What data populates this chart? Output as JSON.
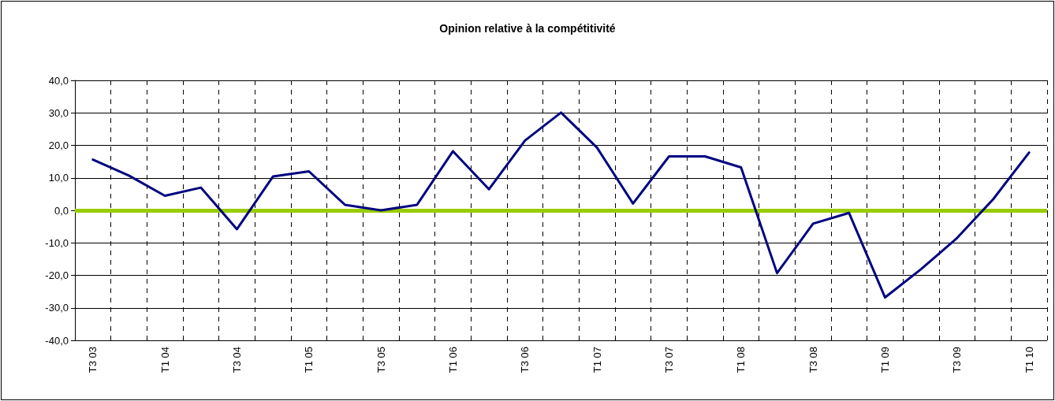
{
  "chart_data": {
    "type": "line",
    "title": "Opinion relative à la compétitivité",
    "categories": [
      "T3 03",
      null,
      "T1 04",
      null,
      "T3 04",
      null,
      "T1 05",
      null,
      "T3 05",
      null,
      "T1 06",
      null,
      "T3 06",
      null,
      "T1 07",
      null,
      "T3 07",
      null,
      "T1 08",
      null,
      "T3 08",
      null,
      "T1 09",
      null,
      "T3 09",
      null,
      "T1 10"
    ],
    "series": [
      {
        "color": "#000080",
        "values": [
          15.6,
          10.7,
          4.5,
          7.0,
          -5.8,
          10.4,
          12.0,
          1.7,
          0,
          1.7,
          18.2,
          6.5,
          21.5,
          30.1,
          19.3,
          2.1,
          16.6,
          16.6,
          13.2,
          -19.3,
          -4.1,
          -0.8,
          -26.8,
          -18.1,
          -8.5,
          3.4,
          17.8
        ]
      }
    ],
    "ylim": [
      -40,
      40
    ],
    "yticks": [
      {
        "value": -40,
        "label": "-40,0"
      },
      {
        "value": -30,
        "label": "-30,0"
      },
      {
        "value": -20,
        "label": "-20,0"
      },
      {
        "value": -10,
        "label": "-10,0"
      },
      {
        "value": 0,
        "label": "0,0"
      },
      {
        "value": 10,
        "label": "10,0"
      },
      {
        "value": 20,
        "label": "20,0"
      },
      {
        "value": 30,
        "label": "30,0"
      },
      {
        "value": 40,
        "label": "40,0"
      }
    ],
    "ref_lines": [
      {
        "axis": "y",
        "value": 0,
        "label": null,
        "color": "#99cc00"
      }
    ],
    "grid": true,
    "marker": "none",
    "line_style": "solid"
  }
}
